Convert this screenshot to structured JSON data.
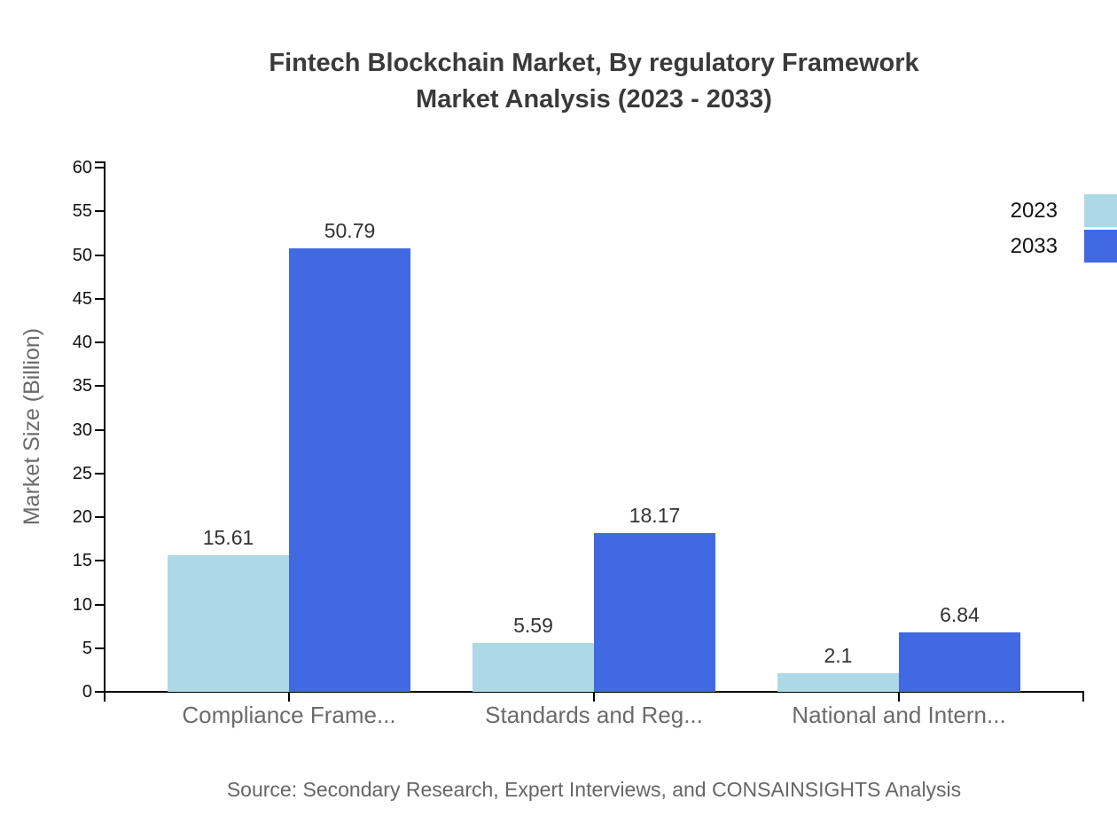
{
  "title": {
    "line1": "Fintech Blockchain Market, By regulatory Framework",
    "line2": "Market Analysis (2023 - 2033)"
  },
  "source": "Source: Secondary Research, Expert Interviews, and CONSAINSIGHTS Analysis",
  "chart_data": {
    "type": "bar",
    "categories": [
      "Compliance Frame...",
      "Standards and Reg...",
      "National and Intern..."
    ],
    "series": [
      {
        "name": "2023",
        "color": "#ADD8E6",
        "values": [
          15.61,
          5.59,
          2.1
        ],
        "labels": [
          "15.61",
          "5.59",
          "2.1"
        ]
      },
      {
        "name": "2033",
        "color": "#4169E1",
        "values": [
          50.79,
          18.17,
          6.84
        ],
        "labels": [
          "50.79",
          "18.17",
          "6.84"
        ]
      }
    ],
    "ylabel": "Market Size (Billion)",
    "xlabel": "",
    "ylim": [
      0,
      60
    ],
    "ytick_step": 5,
    "yticks": [
      0,
      5,
      10,
      15,
      20,
      25,
      30,
      35,
      40,
      45,
      50,
      55,
      60
    ],
    "grid": false,
    "legend": {
      "position": "top-right",
      "items": [
        "2023",
        "2033"
      ]
    }
  }
}
